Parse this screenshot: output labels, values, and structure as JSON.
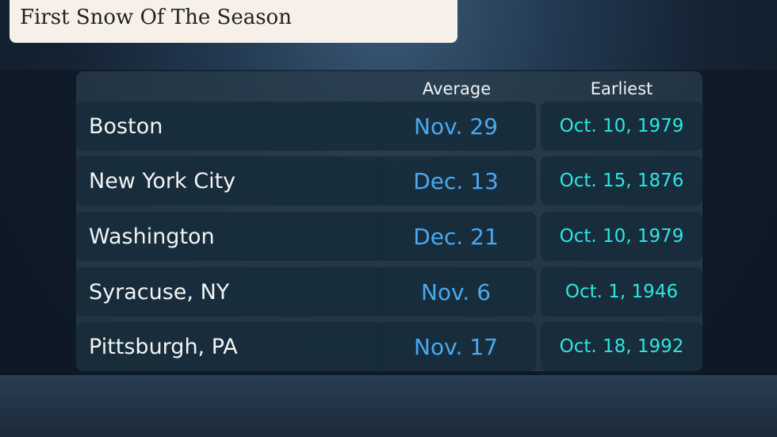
{
  "title": "First Snow Of The Season",
  "colors": {
    "average": "#4aa8f0",
    "earliest": "#2ee6e0",
    "title_bg": "#f6f0e8"
  },
  "chart_data": {
    "type": "table",
    "columns": [
      "",
      "Average",
      "Earliest"
    ],
    "rows": [
      {
        "city": "Boston",
        "average": "Nov. 29",
        "earliest": "Oct. 10, 1979"
      },
      {
        "city": "New York City",
        "average": "Dec. 13",
        "earliest": "Oct. 15, 1876"
      },
      {
        "city": "Washington",
        "average": "Dec. 21",
        "earliest": "Oct. 10, 1979"
      },
      {
        "city": "Syracuse, NY",
        "average": "Nov. 6",
        "earliest": "Oct. 1, 1946"
      },
      {
        "city": "Pittsburgh, PA",
        "average": "Nov. 17",
        "earliest": "Oct. 18, 1992"
      }
    ]
  }
}
